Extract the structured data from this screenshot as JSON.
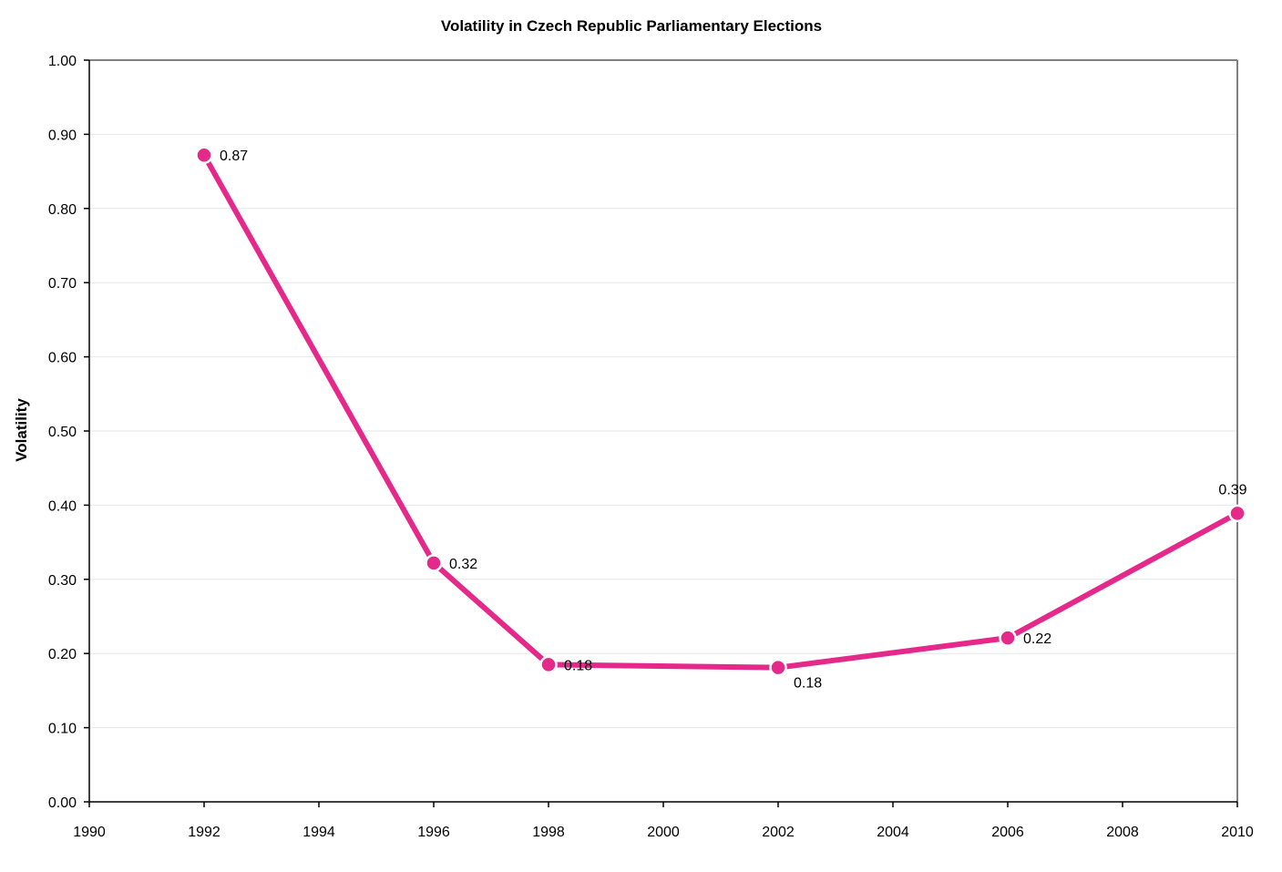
{
  "chart_data": {
    "type": "line",
    "title": "Volatility in Czech Republic Parliamentary Elections",
    "xlabel": "",
    "ylabel": "Volatility",
    "xlim": [
      1990,
      2010
    ],
    "ylim": [
      0,
      1
    ],
    "x_ticks": [
      1990,
      1992,
      1994,
      1996,
      1998,
      2000,
      2002,
      2004,
      2006,
      2008,
      2010
    ],
    "x_tick_labels": [
      "1990",
      "1992",
      "1994",
      "1996",
      "1998",
      "2000",
      "2002",
      "2004",
      "2006",
      "2008",
      "2010"
    ],
    "y_ticks": [
      0,
      0.1,
      0.2,
      0.3,
      0.4,
      0.5,
      0.6,
      0.7,
      0.8,
      0.9,
      1.0
    ],
    "y_tick_labels": [
      "0.00",
      "0.10",
      "0.20",
      "0.30",
      "0.40",
      "0.50",
      "0.60",
      "0.70",
      "0.80",
      "0.90",
      "1.00"
    ],
    "grid": "horizontal",
    "legend": "none",
    "series": [
      {
        "color": "#e5298a",
        "x": [
          1992,
          1996,
          1998,
          2002,
          2006,
          2010
        ],
        "y": [
          0.872,
          0.322,
          0.185,
          0.181,
          0.221,
          0.389
        ],
        "data_labels": [
          "0.87",
          "0.32",
          "0.18",
          "0.18",
          "0.22",
          "0.39"
        ]
      }
    ]
  },
  "colors": {
    "series": "#e5298a",
    "grid": "#e6e6e6",
    "axis": "#000000",
    "plot_border": "#808080",
    "background": "#ffffff"
  }
}
